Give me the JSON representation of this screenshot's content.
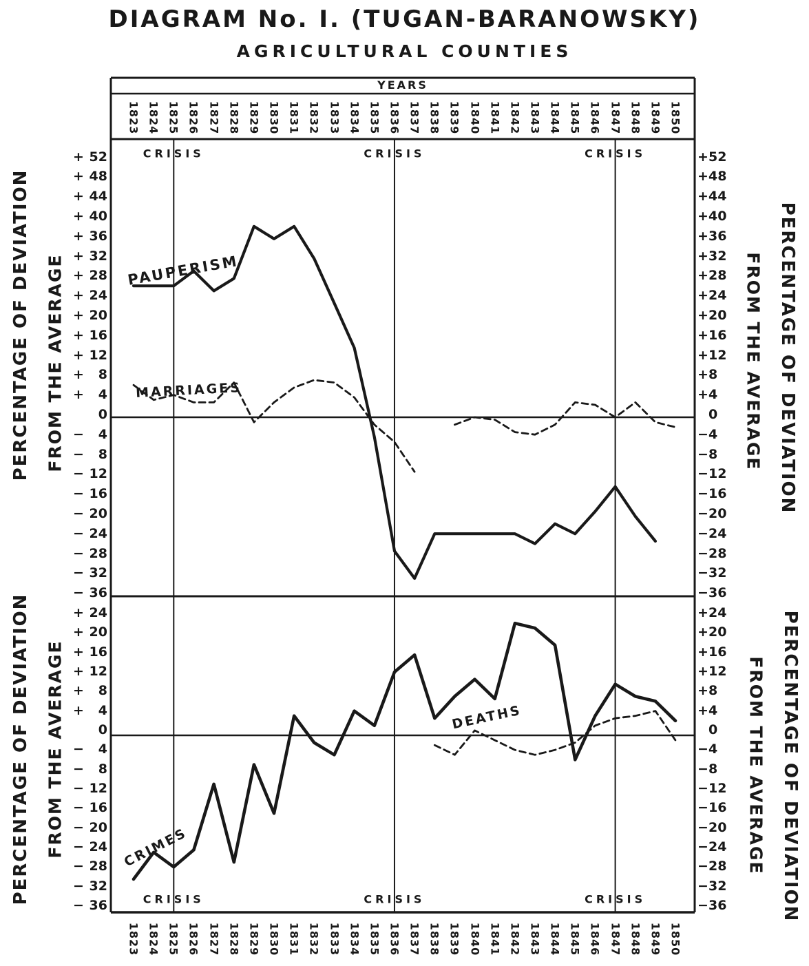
{
  "page": {
    "title": "DIAGRAM No. I. (TUGAN-BARANOWSKY)",
    "subtitle": "AGRICULTURAL COUNTIES",
    "ink_color": "#191919",
    "paper_color": "#ffffff"
  },
  "labels": {
    "years_header": "YEARS",
    "crisis": "CRISIS",
    "axis_outer": "PERCENTAGE OF DEVIATION",
    "axis_inner": "FROM THE AVERAGE"
  },
  "years": [
    1823,
    1824,
    1825,
    1826,
    1827,
    1828,
    1829,
    1830,
    1831,
    1832,
    1833,
    1834,
    1835,
    1836,
    1837,
    1838,
    1839,
    1840,
    1841,
    1842,
    1843,
    1844,
    1845,
    1846,
    1847,
    1848,
    1849,
    1850
  ],
  "crisis_years": [
    1825,
    1836,
    1847
  ],
  "chart_data": [
    {
      "type": "line",
      "panel": "upper",
      "x": [
        1823,
        1824,
        1825,
        1826,
        1827,
        1828,
        1829,
        1830,
        1831,
        1832,
        1833,
        1834,
        1835,
        1836,
        1837,
        1838,
        1839,
        1840,
        1841,
        1842,
        1843,
        1844,
        1845,
        1846,
        1847,
        1848,
        1849,
        1850
      ],
      "xlabel": "YEARS",
      "ylabel": "PERCENTAGE OF DEVIATION FROM THE AVERAGE",
      "ylim": [
        -36,
        56
      ],
      "yticks": [
        52,
        48,
        44,
        40,
        36,
        32,
        28,
        24,
        20,
        16,
        12,
        8,
        4,
        0,
        -4,
        -8,
        -12,
        -16,
        -20,
        -24,
        -28,
        -32,
        -36
      ],
      "ytick_labels": [
        "+52",
        "+48",
        "+44",
        "+40",
        "+36",
        "+32",
        "+28",
        "+24",
        "+20",
        "+16",
        "+12",
        "+8",
        "+4",
        "0",
        "−4",
        "−8",
        "−12",
        "−16",
        "−20",
        "−24",
        "−28",
        "−32",
        "−36"
      ],
      "zero_line": true,
      "vlines": {
        "label": "CRISIS",
        "years": [
          1825,
          1836,
          1847
        ]
      },
      "legend_position": "labels-on-curves",
      "series": [
        {
          "name": "PAUPERISM",
          "line": "solid",
          "values": [
            26.5,
            26.5,
            26.5,
            29.5,
            25.5,
            28,
            38.5,
            36,
            38.5,
            32,
            23,
            14,
            -4,
            -27,
            -32.5,
            -23.5,
            -23.5,
            -23.5,
            -23.5,
            -23.5,
            -25.5,
            -21.5,
            -23.5,
            -19,
            -14,
            -20,
            -25,
            null
          ]
        },
        {
          "name": "MARRIAGES",
          "line": "dashed",
          "values": [
            6.5,
            3.5,
            4.5,
            3,
            3,
            7,
            -1,
            3,
            6,
            7.5,
            7,
            4,
            -1.5,
            -5,
            -11,
            null,
            -1.5,
            0,
            -0.5,
            -3,
            -3.5,
            -1.5,
            3,
            2.5,
            0,
            3,
            -1,
            -2
          ]
        }
      ]
    },
    {
      "type": "line",
      "panel": "lower",
      "x": [
        1823,
        1824,
        1825,
        1826,
        1827,
        1828,
        1829,
        1830,
        1831,
        1832,
        1833,
        1834,
        1835,
        1836,
        1837,
        1838,
        1839,
        1840,
        1841,
        1842,
        1843,
        1844,
        1845,
        1846,
        1847,
        1848,
        1849,
        1850
      ],
      "xlabel": "YEARS",
      "ylabel": "PERCENTAGE OF DEVIATION FROM THE AVERAGE",
      "ylim": [
        -36,
        28
      ],
      "yticks": [
        24,
        20,
        16,
        12,
        8,
        4,
        0,
        -4,
        -8,
        -12,
        -16,
        -20,
        -24,
        -28,
        -32,
        -36
      ],
      "ytick_labels": [
        "+24",
        "+20",
        "+16",
        "+12",
        "+8",
        "+4",
        "0",
        "−4",
        "−8",
        "−12",
        "−16",
        "−20",
        "−24",
        "−28",
        "−32",
        "−36"
      ],
      "zero_line": true,
      "vlines": {
        "label": "CRISIS",
        "years": [
          1825,
          1836,
          1847
        ]
      },
      "legend_position": "labels-on-curves",
      "series": [
        {
          "name": "CRIMES",
          "line": "solid",
          "values": [
            -29.5,
            -24,
            -27,
            -23.5,
            -10,
            -26,
            -6,
            -16,
            4,
            -1.5,
            -4,
            5,
            2,
            13,
            16.5,
            3.5,
            8,
            11.5,
            7.5,
            23,
            22,
            18.5,
            -5,
            4,
            10.5,
            8,
            7,
            3
          ]
        },
        {
          "name": "DEATHS",
          "line": "dashed",
          "values": [
            null,
            null,
            null,
            null,
            null,
            null,
            null,
            null,
            null,
            null,
            null,
            null,
            null,
            null,
            null,
            -2,
            -4,
            1,
            -1,
            -3,
            -4,
            -3,
            -1.5,
            2,
            3.5,
            4,
            5,
            -1
          ]
        }
      ]
    }
  ]
}
